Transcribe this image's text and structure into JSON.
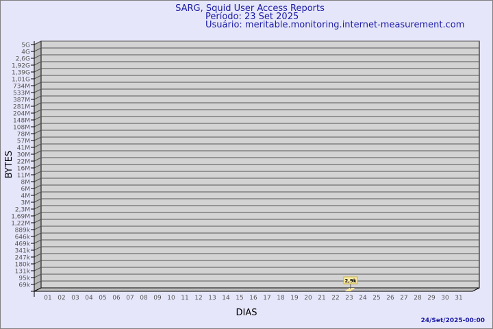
{
  "header": {
    "title": "SARG, Squid User Access Reports",
    "period": "Período: 23 Set 2025",
    "user": "Usuário: meritable.monitoring.internet-measurement.com"
  },
  "footer": {
    "timestamp": "24/Set/2025-00:00"
  },
  "colors": {
    "background": "#e6e6fa",
    "plot": "#d3d3d3",
    "bar": "#ffe89a",
    "text": "#1a1aa6"
  },
  "chart_data": {
    "type": "bar",
    "title": "SARG, Squid User Access Reports",
    "xlabel": "DIAS",
    "ylabel": "BYTES",
    "yscale": "log",
    "grid": true,
    "y_tick_labels": [
      "5G",
      "4G",
      "2,6G",
      "1,92G",
      "1,39G",
      "1,01G",
      "734M",
      "533M",
      "387M",
      "281M",
      "204M",
      "148M",
      "108M",
      "78M",
      "57M",
      "41M",
      "30M",
      "22M",
      "16M",
      "11M",
      "8M",
      "6M",
      "4M",
      "3M",
      "2,3M",
      "1,69M",
      "1,22M",
      "889k",
      "646k",
      "469k",
      "341k",
      "247k",
      "180k",
      "131k",
      "95k",
      "69k"
    ],
    "categories": [
      "01",
      "02",
      "03",
      "04",
      "05",
      "06",
      "07",
      "08",
      "09",
      "10",
      "11",
      "12",
      "13",
      "14",
      "15",
      "16",
      "17",
      "18",
      "19",
      "20",
      "21",
      "22",
      "23",
      "24",
      "25",
      "26",
      "27",
      "28",
      "29",
      "30",
      "31"
    ],
    "values": [
      null,
      null,
      null,
      null,
      null,
      null,
      null,
      null,
      null,
      null,
      null,
      null,
      null,
      null,
      null,
      null,
      null,
      null,
      null,
      null,
      null,
      null,
      2900,
      null,
      null,
      null,
      null,
      null,
      null,
      null,
      null
    ],
    "data_labels": {
      "23": "2,9k"
    }
  }
}
